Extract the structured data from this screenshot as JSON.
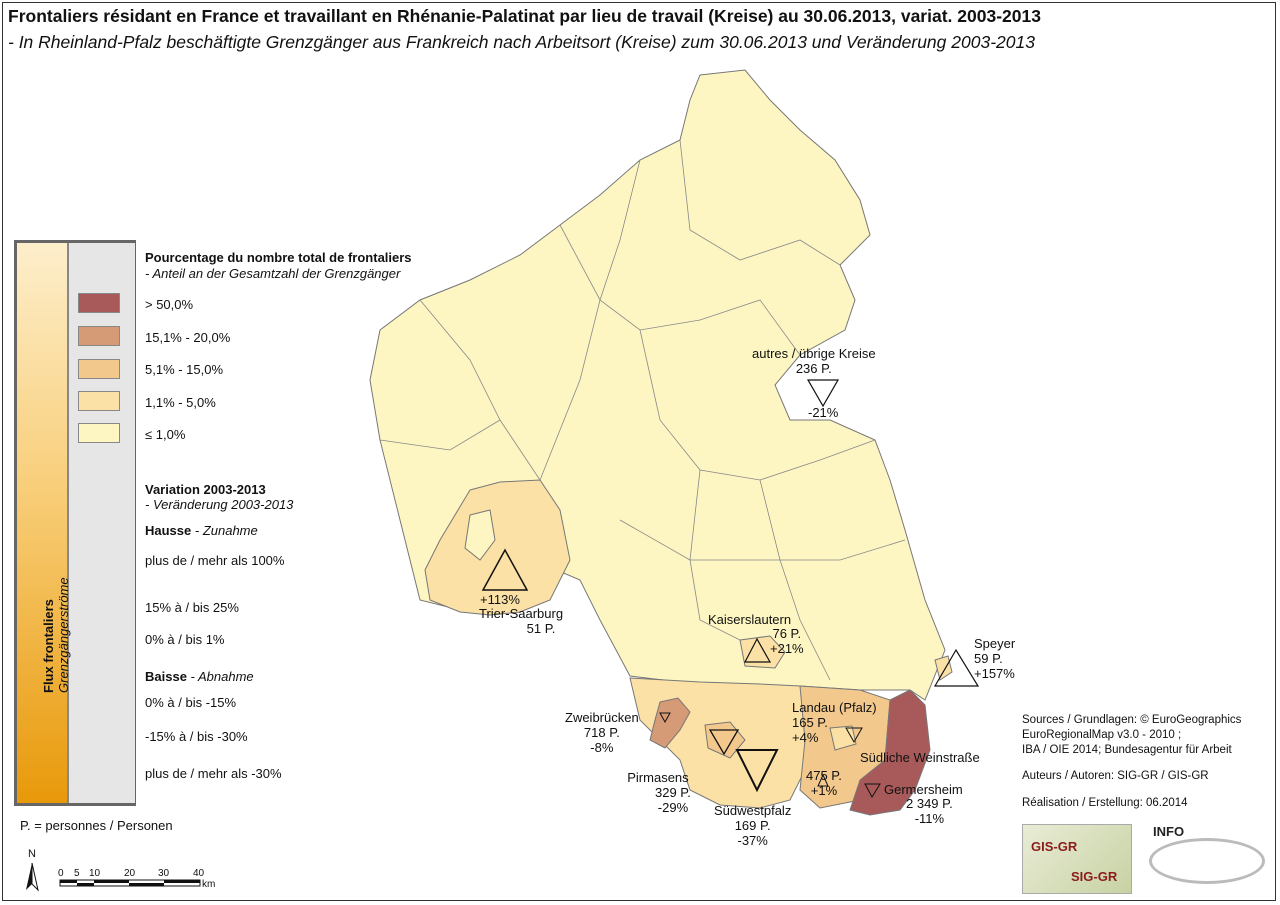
{
  "title": "Frontaliers résidant en France et travaillant en Rhénanie-Palatinat par lieu de travail (Kreise) au 30.06.2013, variat. 2003-2013",
  "subtitle": "- In Rheinland-Pfalz beschäftigte Grenzgänger aus Frankreich nach Arbeitsort (Kreise) zum 30.06.2013 und Veränderung 2003-2013",
  "legend": {
    "vertical_title": "Flux frontaliers",
    "vertical_subtitle": "Grenzgängerströme",
    "pct_heading": "Pourcentage du nombre total de frontaliers",
    "pct_subheading": "- Anteil an der Gesamtzahl der Grenzgänger",
    "classes": [
      {
        "label": "> 50,0%",
        "color": "#a8595a"
      },
      {
        "label": "15,1% - 20,0%",
        "color": "#d59a76"
      },
      {
        "label": "5,1% - 15,0%",
        "color": "#f3c88c"
      },
      {
        "label": "1,1% - 5,0%",
        "color": "#fbe1a6"
      },
      {
        "label": "≤ 1,0%",
        "color": "#fdf6c2"
      }
    ],
    "var_heading": "Variation 2003-2013",
    "var_subheading": "- Veränderung 2003-2013",
    "hausse": "Hausse",
    "hausse_de": "- Zunahme",
    "up_items": [
      "plus de / mehr als 100%",
      "15% à / bis 25%",
      "0% à / bis 1%"
    ],
    "baisse": "Baisse",
    "baisse_de": "- Abnahme",
    "down_items": [
      "0% à / bis -15%",
      "-15% à / bis -30%",
      "plus de / mehr als -30%"
    ],
    "footnote": "P. = personnes / Personen"
  },
  "places": [
    {
      "name": "autres / übrige Kreise",
      "persons": "236 P.",
      "change": "-21%"
    },
    {
      "name": "Trier-Saarburg",
      "persons": "51 P.",
      "change": "+113%"
    },
    {
      "name": "Kaiserslautern",
      "persons": "76 P.",
      "change": "+21%"
    },
    {
      "name": "Speyer",
      "persons": "59 P.",
      "change": "+157%"
    },
    {
      "name": "Zweibrücken",
      "persons": "718 P.",
      "change": "-8%"
    },
    {
      "name": "Landau (Pfalz)",
      "persons": "165 P.",
      "change": "+4%"
    },
    {
      "name": "Südliche Weinstraße",
      "persons": "475 P.",
      "change": "+1%"
    },
    {
      "name": "Pirmasens",
      "persons": "329 P.",
      "change": "-29%"
    },
    {
      "name": "Südwestpfalz",
      "persons": "169 P.",
      "change": "-37%"
    },
    {
      "name": "Germersheim",
      "persons": "2 349 P.",
      "change": "-11%"
    }
  ],
  "sources": [
    "Sources / Grundlagen: © EuroGeographics",
    "EuroRegionalMap v3.0 - 2010 ;",
    "IBA / OIE 2014; Bundesagentur für Arbeit",
    "Auteurs / Autoren: SIG-GR / GIS-GR",
    "Réalisation / Erstellung: 06.2014"
  ],
  "scale": {
    "north": "N",
    "ticks": [
      "0",
      "5",
      "10",
      "20",
      "30",
      "40"
    ],
    "unit": "km"
  },
  "logos": {
    "gis": "GIS-GR",
    "sig": "SIG-GR",
    "info": "INFO"
  }
}
